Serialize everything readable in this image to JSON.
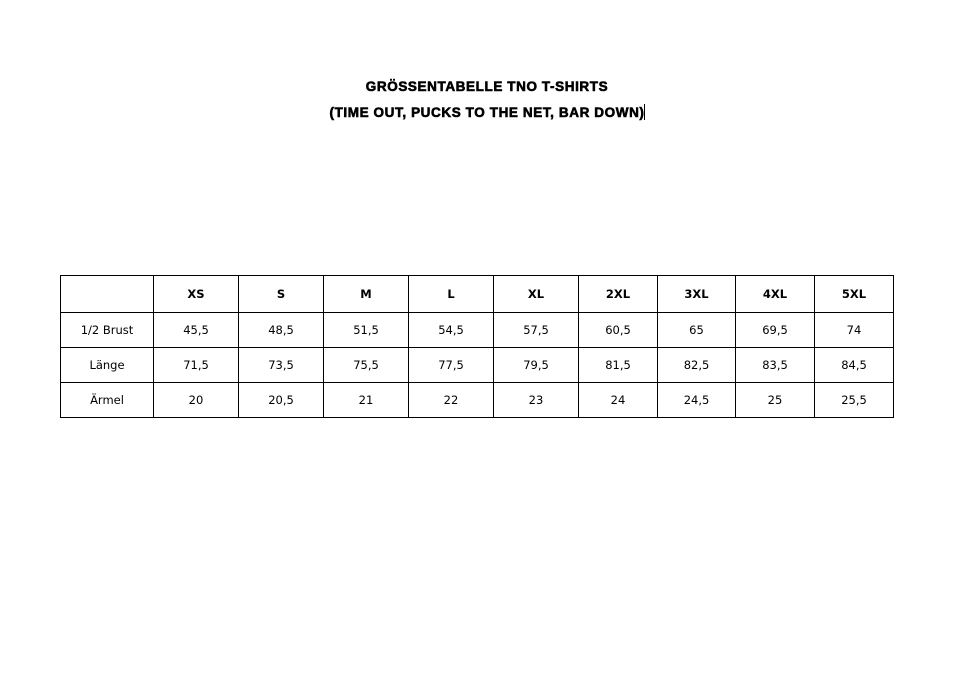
{
  "document": {
    "title": "Größentabelle TNO T-Shirts",
    "subtitle": "(Time Out, Pucks to the Net, Bar Down)"
  },
  "table": {
    "headers": [
      "",
      "XS",
      "S",
      "M",
      "L",
      "XL",
      "2XL",
      "3XL",
      "4XL",
      "5XL"
    ],
    "rows": [
      {
        "label": "1/2 Brust",
        "values": [
          "45,5",
          "48,5",
          "51,5",
          "54,5",
          "57,5",
          "60,5",
          "65",
          "69,5",
          "74"
        ]
      },
      {
        "label": "Länge",
        "values": [
          "71,5",
          "73,5",
          "75,5",
          "77,5",
          "79,5",
          "81,5",
          "82,5",
          "83,5",
          "84,5"
        ]
      },
      {
        "label": "Ärmel",
        "values": [
          "20",
          "20,5",
          "21",
          "22",
          "23",
          "24",
          "24,5",
          "25",
          "25,5"
        ]
      }
    ]
  }
}
